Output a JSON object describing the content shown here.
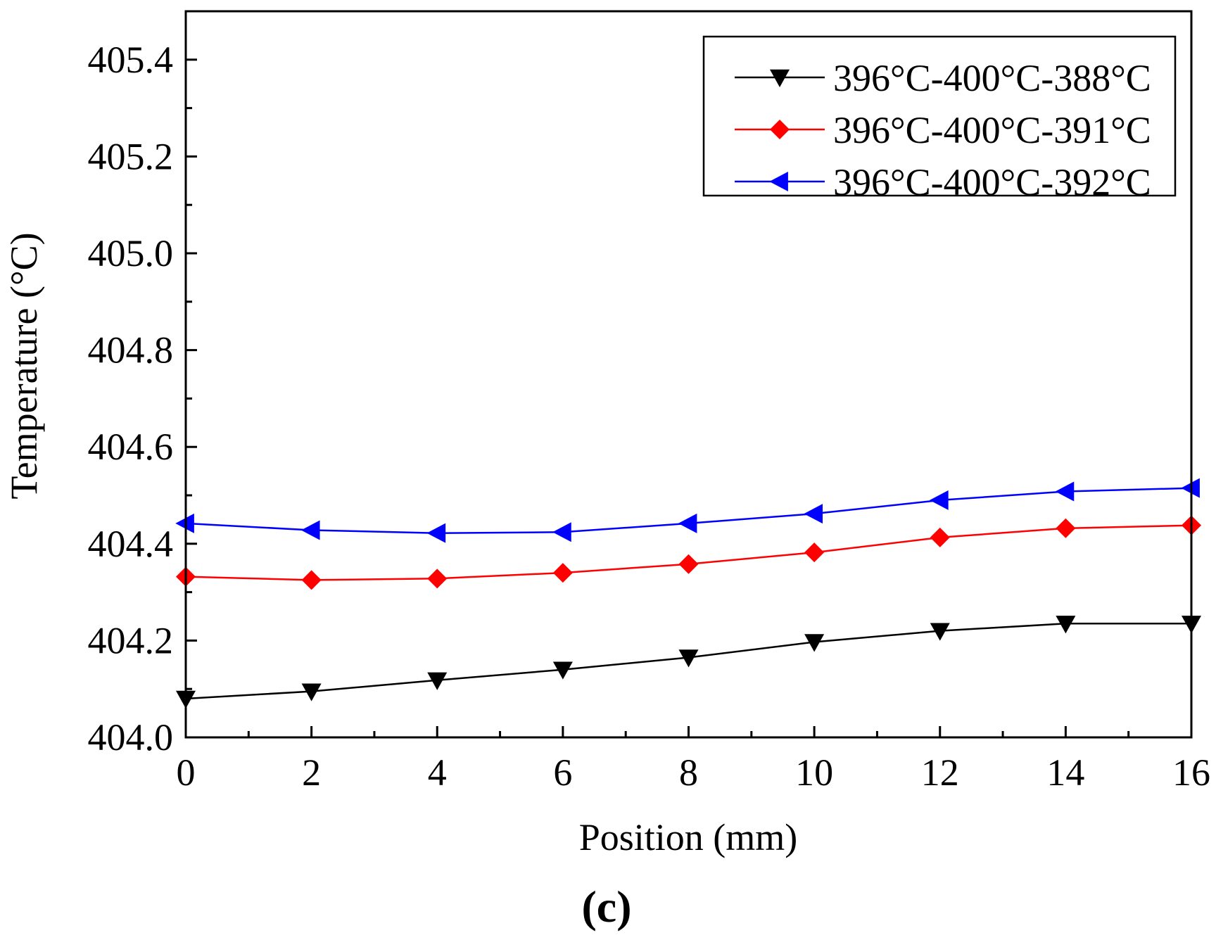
{
  "chart_data": {
    "type": "line",
    "title": "",
    "xlabel": "Position (mm)",
    "ylabel": "Temperature (°C)",
    "panel_label": "(c)",
    "xlim": [
      0,
      16
    ],
    "ylim": [
      404.0,
      405.5
    ],
    "x_ticks": [
      0,
      2,
      4,
      6,
      8,
      10,
      12,
      14,
      16
    ],
    "x_tick_labels": [
      "0",
      "2",
      "4",
      "6",
      "8",
      "10",
      "12",
      "14",
      "16"
    ],
    "y_ticks": [
      404.0,
      404.2,
      404.4,
      404.6,
      404.8,
      405.0,
      405.2,
      405.4
    ],
    "y_tick_labels": [
      "404.0",
      "404.2",
      "404.4",
      "404.6",
      "404.8",
      "405.0",
      "405.2",
      "405.4"
    ],
    "grid": false,
    "legend_position": "top-right",
    "x": [
      0,
      2,
      4,
      6,
      8,
      10,
      12,
      14,
      16
    ],
    "series": [
      {
        "name": "396°C-400°C-388°C",
        "color": "#000000",
        "marker": "triangle-down",
        "values": [
          404.08,
          404.095,
          404.118,
          404.14,
          404.165,
          404.197,
          404.22,
          404.235,
          404.235
        ]
      },
      {
        "name": "396°C-400°C-391°C",
        "color": "#ff0000",
        "marker": "diamond",
        "values": [
          404.332,
          404.325,
          404.328,
          404.34,
          404.358,
          404.382,
          404.413,
          404.432,
          404.438
        ]
      },
      {
        "name": "396°C-400°C-392°C",
        "color": "#0000ff",
        "marker": "triangle-left",
        "values": [
          404.442,
          404.428,
          404.422,
          404.424,
          404.442,
          404.462,
          404.49,
          404.508,
          404.515
        ]
      }
    ]
  }
}
